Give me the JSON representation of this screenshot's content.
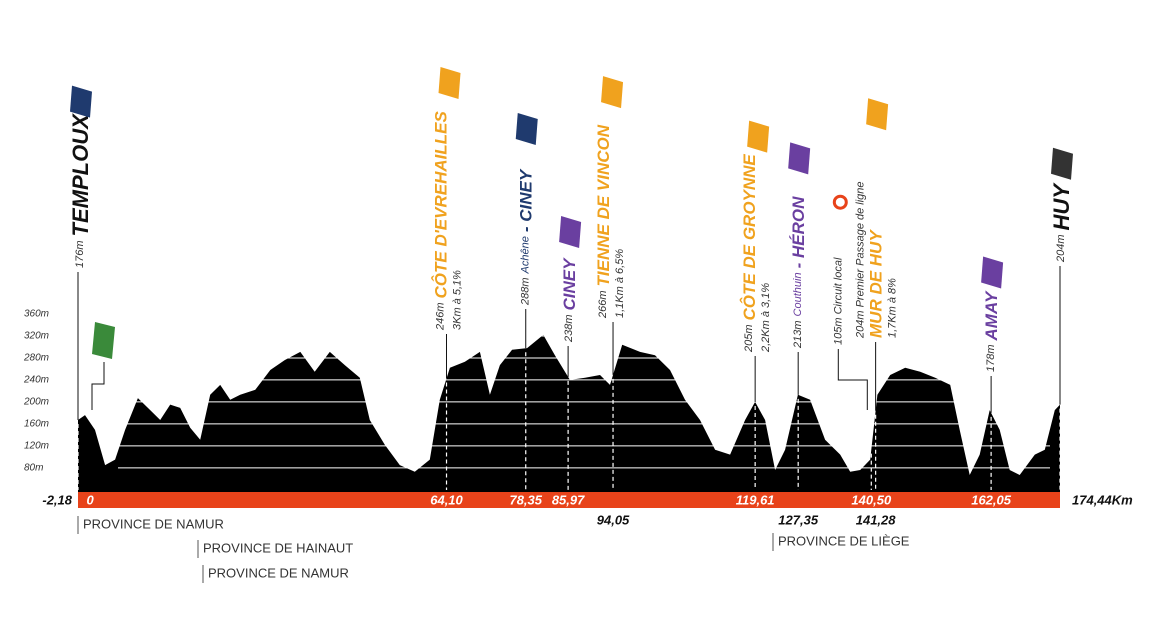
{
  "chart_data": {
    "type": "area",
    "color": "#000000",
    "bar_color": "#e8431a",
    "x": [
      -2.18,
      -0.92,
      0.88,
      2.7,
      4.5,
      6.3,
      8.6,
      10.8,
      12.6,
      14.4,
      16.2,
      18,
      19.8,
      21.6,
      23.4,
      25.2,
      27,
      29.7,
      32.4,
      35,
      37.8,
      40.4,
      43.1,
      45.8,
      48.5,
      50.3,
      53,
      55.7,
      58.4,
      61.1,
      62.9,
      64.7,
      67.4,
      70.1,
      71.9,
      73.7,
      75.9,
      78.6,
      81.5,
      83.6,
      86.3,
      89,
      91.7,
      93.5,
      95.7,
      98.9,
      101.6,
      104.3,
      107,
      109.7,
      112.4,
      115.1,
      117.8,
      119.6,
      121.4,
      123.2,
      125,
      127.3,
      129.5,
      132.2,
      134.9,
      136.7,
      138.5,
      140.3,
      141.6,
      143.9,
      146.6,
      149.3,
      152,
      154.7,
      156.4,
      158.2,
      160,
      161.8,
      163.6,
      165.4,
      167.2,
      169.9,
      171.7,
      173.5,
      174.44
    ],
    "values": [
      167,
      176,
      149,
      85,
      95,
      149,
      207,
      185,
      167,
      195,
      189,
      153,
      131,
      213,
      231,
      204,
      213,
      222,
      258,
      276,
      291,
      255,
      291,
      267,
      244,
      167,
      122,
      85,
      73,
      95,
      204,
      262,
      273,
      291,
      213,
      267,
      295,
      298,
      322,
      285,
      240,
      244,
      249,
      231,
      304,
      291,
      285,
      258,
      204,
      167,
      113,
      104,
      167,
      200,
      167,
      76,
      113,
      213,
      204,
      131,
      104,
      73,
      76,
      95,
      213,
      249,
      262,
      255,
      244,
      231,
      149,
      67,
      104,
      185,
      149,
      76,
      67,
      104,
      113,
      185,
      195
    ],
    "xlim": [
      -2.18,
      174.44
    ],
    "xticks": [
      {
        "value": -2.18,
        "label": "-2,18"
      },
      0,
      {
        "value": 64.1,
        "label": "64,10"
      },
      {
        "value": 78.35,
        "label": "78,35"
      },
      {
        "value": 85.97,
        "label": "85,97"
      },
      {
        "value": 94.05,
        "label": "94,05"
      },
      {
        "value": 119.61,
        "label": "119,61"
      },
      {
        "value": 127.35,
        "label": "127,35"
      },
      {
        "value": 140.5,
        "label": "140,50"
      },
      {
        "value": 141.28,
        "label": "141,28"
      },
      {
        "value": 162.05,
        "label": "162,05"
      },
      {
        "value": 174.44,
        "label": "174,44Km"
      }
    ],
    "ylim": [
      36,
      370
    ],
    "yticks": [
      {
        "value": 80,
        "label": "80m"
      },
      {
        "value": 120,
        "label": "120m"
      },
      {
        "value": 160,
        "label": "160m"
      },
      {
        "value": 200,
        "label": "200m"
      },
      {
        "value": 240,
        "label": "240m"
      },
      {
        "value": 280,
        "label": "280m"
      },
      {
        "value": 320,
        "label": "320m"
      },
      {
        "value": 360,
        "label": "360m"
      }
    ],
    "grid": true,
    "waypoints": [
      {
        "km": -2.18,
        "color": "#111111",
        "lines": [
          [
            {
              "text": "176m",
              "style": "small"
            },
            {
              "text": "TEMPLOUX",
              "style": "big"
            }
          ]
        ]
      },
      {
        "km": 64.1,
        "color": "#f0a21e",
        "lines": [
          [
            {
              "text": "246m",
              "style": "small"
            },
            {
              "text": "CÔTE D'EVREHAILLES",
              "style": "name"
            }
          ],
          [
            {
              "text": "3Km à 5,1%",
              "style": "small"
            }
          ]
        ]
      },
      {
        "km": 78.35,
        "color": "#1f3a6e",
        "lines": [
          [
            {
              "text": "288m",
              "style": "small"
            },
            {
              "text": "Achêne",
              "style": "small-color"
            },
            {
              "text": "- CINEY",
              "style": "name"
            }
          ]
        ]
      },
      {
        "km": 85.97,
        "color": "#6a3fa0",
        "lines": [
          [
            {
              "text": "238m",
              "style": "small"
            },
            {
              "text": "CINEY",
              "style": "name"
            }
          ]
        ]
      },
      {
        "km": 94.05,
        "color": "#f0a21e",
        "lines": [
          [
            {
              "text": "266m",
              "style": "small"
            },
            {
              "text": "TIENNE DE VINCON",
              "style": "name"
            }
          ],
          [
            {
              "text": "1,1Km à 6,5%",
              "style": "small"
            }
          ]
        ]
      },
      {
        "km": 119.61,
        "color": "#f0a21e",
        "lines": [
          [
            {
              "text": "205m",
              "style": "small"
            },
            {
              "text": "CÔTE DE GROYNNE",
              "style": "name"
            }
          ],
          [
            {
              "text": "2,2Km à 3,1%",
              "style": "small"
            }
          ]
        ]
      },
      {
        "km": 127.35,
        "color": "#6a3fa0",
        "lines": [
          [
            {
              "text": "213m",
              "style": "small"
            },
            {
              "text": "Couthuin",
              "style": "small-color"
            },
            {
              "text": "- HÉRON",
              "style": "name"
            }
          ]
        ]
      },
      {
        "km": 140.5,
        "color": "#111111",
        "lines": [
          [
            {
              "text": "105m Circuit local",
              "style": "small"
            }
          ]
        ]
      },
      {
        "km": 141.28,
        "color": "#f0a21e",
        "lines": [
          [
            {
              "text": "204m Premier Passage de ligne",
              "style": "small"
            }
          ],
          [
            {
              "text": "MUR DE HUY",
              "style": "name"
            }
          ],
          [
            {
              "text": "1,7Km à 8%",
              "style": "small"
            }
          ]
        ]
      },
      {
        "km": 162.05,
        "color": "#6a3fa0",
        "lines": [
          [
            {
              "text": "178m",
              "style": "small"
            },
            {
              "text": "AMAY",
              "style": "name"
            }
          ]
        ]
      },
      {
        "km": 174.44,
        "color": "#111111",
        "lines": [
          [
            {
              "text": "204m",
              "style": "small"
            },
            {
              "text": "HUY",
              "style": "big"
            }
          ]
        ]
      }
    ],
    "provinces": [
      "PROVINCE DE NAMUR",
      "PROVINCE DE HAINAUT",
      "PROVINCE DE NAMUR",
      "PROVINCE DE LIÈGE"
    ]
  }
}
